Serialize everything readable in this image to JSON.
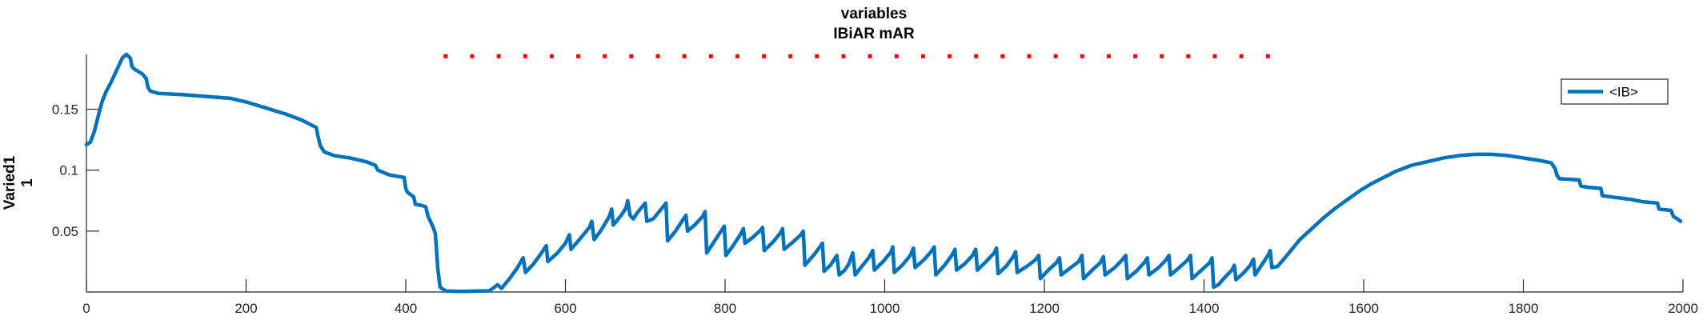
{
  "chart_data": {
    "type": "line",
    "title": [
      "variables",
      "IBiAR mAR"
    ],
    "ylabel": [
      "Varied1",
      "1"
    ],
    "xlabel": "",
    "xlim": [
      0,
      2000
    ],
    "ylim": [
      0,
      0.195
    ],
    "xticks": [
      0,
      200,
      400,
      600,
      800,
      1000,
      1200,
      1400,
      1600,
      1800,
      2000
    ],
    "xtick_labels": [
      "0",
      "200",
      "400",
      "600",
      "800",
      "1000",
      "1200",
      "1400",
      "1600",
      "1800",
      "2000"
    ],
    "yticks": [
      0.05,
      0.1,
      0.15
    ],
    "ytick_labels": [
      "0.05",
      "0.1",
      "0.15"
    ],
    "grid": false,
    "legend": {
      "position": "top-right",
      "entries": [
        "<IB>"
      ]
    },
    "colors": {
      "series": "#0072BD",
      "marker": "#FF0000",
      "axis": "#262626"
    },
    "marker_line": {
      "name": "red dotted",
      "x_start": 450,
      "x_end": 1480,
      "y": 0.1935,
      "count": 32
    },
    "series": [
      {
        "name": "<IB>",
        "points": [
          [
            0,
            0.121
          ],
          [
            5,
            0.123
          ],
          [
            10,
            0.132
          ],
          [
            15,
            0.145
          ],
          [
            20,
            0.157
          ],
          [
            25,
            0.165
          ],
          [
            30,
            0.171
          ],
          [
            35,
            0.178
          ],
          [
            40,
            0.185
          ],
          [
            45,
            0.192
          ],
          [
            50,
            0.195
          ],
          [
            55,
            0.192
          ],
          [
            57,
            0.185
          ],
          [
            60,
            0.183
          ],
          [
            70,
            0.179
          ],
          [
            75,
            0.175
          ],
          [
            77,
            0.168
          ],
          [
            80,
            0.165
          ],
          [
            90,
            0.163
          ],
          [
            120,
            0.162
          ],
          [
            180,
            0.159
          ],
          [
            200,
            0.156
          ],
          [
            230,
            0.15
          ],
          [
            250,
            0.146
          ],
          [
            270,
            0.141
          ],
          [
            288,
            0.135
          ],
          [
            290,
            0.128
          ],
          [
            293,
            0.12
          ],
          [
            298,
            0.115
          ],
          [
            310,
            0.112
          ],
          [
            330,
            0.11
          ],
          [
            350,
            0.107
          ],
          [
            362,
            0.104
          ],
          [
            365,
            0.1
          ],
          [
            380,
            0.096
          ],
          [
            398,
            0.094
          ],
          [
            400,
            0.085
          ],
          [
            402,
            0.082
          ],
          [
            410,
            0.078
          ],
          [
            412,
            0.072
          ],
          [
            420,
            0.071
          ],
          [
            425,
            0.07
          ],
          [
            428,
            0.062
          ],
          [
            433,
            0.055
          ],
          [
            435,
            0.052
          ],
          [
            437,
            0.048
          ],
          [
            438,
            0.04
          ],
          [
            439,
            0.03
          ],
          [
            440,
            0.02
          ],
          [
            443,
            0.004
          ],
          [
            450,
            0.0008
          ],
          [
            470,
            0.0005
          ],
          [
            505,
            0.001
          ],
          [
            515,
            0.006
          ],
          [
            520,
            0.003
          ],
          [
            530,
            0.011
          ],
          [
            540,
            0.02
          ],
          [
            547,
            0.028
          ],
          [
            550,
            0.016
          ],
          [
            560,
            0.023
          ],
          [
            570,
            0.032
          ],
          [
            576,
            0.038
          ],
          [
            578,
            0.025
          ],
          [
            590,
            0.032
          ],
          [
            600,
            0.04
          ],
          [
            605,
            0.047
          ],
          [
            607,
            0.035
          ],
          [
            620,
            0.045
          ],
          [
            630,
            0.053
          ],
          [
            633,
            0.058
          ],
          [
            636,
            0.043
          ],
          [
            645,
            0.051
          ],
          [
            655,
            0.062
          ],
          [
            658,
            0.068
          ],
          [
            660,
            0.055
          ],
          [
            670,
            0.063
          ],
          [
            676,
            0.069
          ],
          [
            678,
            0.075
          ],
          [
            681,
            0.063
          ],
          [
            685,
            0.06
          ],
          [
            690,
            0.065
          ],
          [
            700,
            0.073
          ],
          [
            702,
            0.058
          ],
          [
            710,
            0.06
          ],
          [
            720,
            0.068
          ],
          [
            726,
            0.073
          ],
          [
            728,
            0.042
          ],
          [
            738,
            0.05
          ],
          [
            748,
            0.06
          ],
          [
            751,
            0.063
          ],
          [
            753,
            0.05
          ],
          [
            762,
            0.055
          ],
          [
            772,
            0.062
          ],
          [
            775,
            0.066
          ],
          [
            777,
            0.032
          ],
          [
            785,
            0.04
          ],
          [
            797,
            0.052
          ],
          [
            799,
            0.054
          ],
          [
            801,
            0.03
          ],
          [
            810,
            0.038
          ],
          [
            820,
            0.048
          ],
          [
            823,
            0.052
          ],
          [
            825,
            0.04
          ],
          [
            835,
            0.045
          ],
          [
            845,
            0.051
          ],
          [
            847,
            0.053
          ],
          [
            849,
            0.034
          ],
          [
            860,
            0.041
          ],
          [
            870,
            0.049
          ],
          [
            872,
            0.052
          ],
          [
            874,
            0.035
          ],
          [
            885,
            0.041
          ],
          [
            895,
            0.047
          ],
          [
            898,
            0.05
          ],
          [
            900,
            0.022
          ],
          [
            912,
            0.031
          ],
          [
            922,
            0.04
          ],
          [
            924,
            0.017
          ],
          [
            932,
            0.022
          ],
          [
            940,
            0.03
          ],
          [
            943,
            0.014
          ],
          [
            950,
            0.018
          ],
          [
            955,
            0.023
          ],
          [
            960,
            0.032
          ],
          [
            963,
            0.014
          ],
          [
            970,
            0.02
          ],
          [
            980,
            0.028
          ],
          [
            985,
            0.034
          ],
          [
            987,
            0.018
          ],
          [
            998,
            0.025
          ],
          [
            1008,
            0.033
          ],
          [
            1010,
            0.037
          ],
          [
            1012,
            0.016
          ],
          [
            1022,
            0.022
          ],
          [
            1032,
            0.03
          ],
          [
            1036,
            0.036
          ],
          [
            1038,
            0.02
          ],
          [
            1050,
            0.027
          ],
          [
            1058,
            0.033
          ],
          [
            1062,
            0.037
          ],
          [
            1064,
            0.014
          ],
          [
            1075,
            0.022
          ],
          [
            1085,
            0.031
          ],
          [
            1088,
            0.035
          ],
          [
            1090,
            0.018
          ],
          [
            1100,
            0.023
          ],
          [
            1110,
            0.03
          ],
          [
            1114,
            0.035
          ],
          [
            1116,
            0.018
          ],
          [
            1127,
            0.025
          ],
          [
            1137,
            0.032
          ],
          [
            1140,
            0.036
          ],
          [
            1142,
            0.015
          ],
          [
            1152,
            0.021
          ],
          [
            1160,
            0.028
          ],
          [
            1164,
            0.033
          ],
          [
            1166,
            0.016
          ],
          [
            1178,
            0.021
          ],
          [
            1188,
            0.026
          ],
          [
            1193,
            0.03
          ],
          [
            1195,
            0.011
          ],
          [
            1205,
            0.018
          ],
          [
            1215,
            0.024
          ],
          [
            1219,
            0.028
          ],
          [
            1221,
            0.014
          ],
          [
            1233,
            0.02
          ],
          [
            1243,
            0.025
          ],
          [
            1247,
            0.03
          ],
          [
            1249,
            0.011
          ],
          [
            1260,
            0.018
          ],
          [
            1270,
            0.024
          ],
          [
            1274,
            0.029
          ],
          [
            1276,
            0.014
          ],
          [
            1288,
            0.02
          ],
          [
            1297,
            0.026
          ],
          [
            1302,
            0.03
          ],
          [
            1304,
            0.011
          ],
          [
            1315,
            0.017
          ],
          [
            1325,
            0.024
          ],
          [
            1329,
            0.028
          ],
          [
            1331,
            0.014
          ],
          [
            1343,
            0.02
          ],
          [
            1352,
            0.026
          ],
          [
            1356,
            0.03
          ],
          [
            1358,
            0.014
          ],
          [
            1369,
            0.02
          ],
          [
            1379,
            0.026
          ],
          [
            1383,
            0.03
          ],
          [
            1385,
            0.011
          ],
          [
            1397,
            0.018
          ],
          [
            1407,
            0.024
          ],
          [
            1410,
            0.028
          ],
          [
            1412,
            0.004
          ],
          [
            1418,
            0.006
          ],
          [
            1426,
            0.012
          ],
          [
            1435,
            0.018
          ],
          [
            1438,
            0.022
          ],
          [
            1440,
            0.01
          ],
          [
            1450,
            0.016
          ],
          [
            1458,
            0.022
          ],
          [
            1462,
            0.027
          ],
          [
            1464,
            0.014
          ],
          [
            1472,
            0.022
          ],
          [
            1480,
            0.03
          ],
          [
            1483,
            0.034
          ],
          [
            1485,
            0.02
          ],
          [
            1492,
            0.021
          ],
          [
            1500,
            0.027
          ],
          [
            1510,
            0.035
          ],
          [
            1520,
            0.043
          ],
          [
            1535,
            0.052
          ],
          [
            1550,
            0.061
          ],
          [
            1565,
            0.069
          ],
          [
            1580,
            0.076
          ],
          [
            1595,
            0.083
          ],
          [
            1610,
            0.089
          ],
          [
            1625,
            0.094
          ],
          [
            1640,
            0.099
          ],
          [
            1660,
            0.104
          ],
          [
            1680,
            0.107
          ],
          [
            1700,
            0.11
          ],
          [
            1720,
            0.112
          ],
          [
            1740,
            0.113
          ],
          [
            1760,
            0.113
          ],
          [
            1780,
            0.112
          ],
          [
            1800,
            0.11
          ],
          [
            1820,
            0.108
          ],
          [
            1835,
            0.106
          ],
          [
            1840,
            0.101
          ],
          [
            1842,
            0.096
          ],
          [
            1845,
            0.093
          ],
          [
            1870,
            0.092
          ],
          [
            1872,
            0.087
          ],
          [
            1880,
            0.086
          ],
          [
            1897,
            0.085
          ],
          [
            1899,
            0.079
          ],
          [
            1910,
            0.078
          ],
          [
            1935,
            0.076
          ],
          [
            1950,
            0.074
          ],
          [
            1968,
            0.073
          ],
          [
            1970,
            0.068
          ],
          [
            1985,
            0.067
          ],
          [
            1988,
            0.062
          ],
          [
            1993,
            0.06
          ],
          [
            1997,
            0.058
          ]
        ]
      }
    ]
  }
}
